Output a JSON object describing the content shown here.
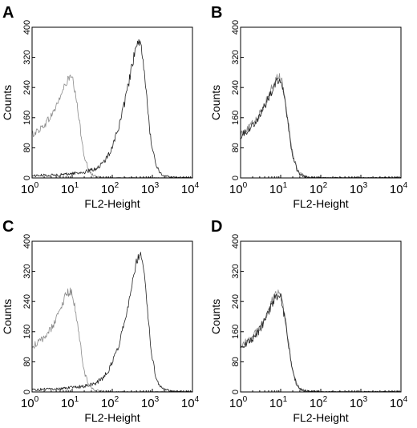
{
  "chart_data": [
    {
      "panel": "A",
      "type": "line",
      "xlabel": "FL2-Height",
      "ylabel": "Counts",
      "xscale": "log",
      "xlim": [
        1,
        10000
      ],
      "ylim": [
        0,
        400
      ],
      "xticks": [
        {
          "base": "10",
          "exp": "0"
        },
        {
          "base": "10",
          "exp": "1"
        },
        {
          "base": "10",
          "exp": "2"
        },
        {
          "base": "10",
          "exp": "3"
        },
        {
          "base": "10",
          "exp": "4"
        }
      ],
      "yticks": [
        "0",
        "80",
        "160",
        "240",
        "320",
        "400"
      ],
      "series": [
        {
          "color": "#8a8a8a",
          "x": [
            1,
            1.5,
            2,
            3,
            4,
            5,
            6,
            7,
            8,
            9,
            10,
            11,
            12,
            14,
            16,
            18,
            20,
            25,
            30,
            40,
            60,
            100,
            1000,
            10000
          ],
          "y": [
            115,
            128,
            140,
            165,
            190,
            215,
            235,
            250,
            262,
            268,
            262,
            245,
            220,
            175,
            130,
            90,
            60,
            25,
            10,
            3,
            1,
            0,
            0,
            0
          ]
        },
        {
          "color": "#222222",
          "x": [
            1,
            5,
            10,
            20,
            40,
            60,
            80,
            100,
            150,
            200,
            250,
            300,
            350,
            400,
            450,
            500,
            550,
            600,
            650,
            700,
            800,
            900,
            1000,
            1200,
            1500,
            2000,
            3000,
            5000,
            10000
          ],
          "y": [
            6,
            8,
            12,
            15,
            25,
            40,
            60,
            85,
            140,
            195,
            245,
            290,
            325,
            345,
            355,
            350,
            335,
            305,
            270,
            230,
            160,
            110,
            75,
            40,
            15,
            5,
            2,
            1,
            0
          ]
        }
      ]
    },
    {
      "panel": "B",
      "type": "line",
      "xlabel": "FL2-Height",
      "ylabel": "Counts",
      "xscale": "log",
      "xlim": [
        1,
        10000
      ],
      "ylim": [
        0,
        400
      ],
      "xticks": [
        {
          "base": "10",
          "exp": "0"
        },
        {
          "base": "10",
          "exp": "1"
        },
        {
          "base": "10",
          "exp": "2"
        },
        {
          "base": "10",
          "exp": "3"
        },
        {
          "base": "10",
          "exp": "4"
        }
      ],
      "yticks": [
        "0",
        "80",
        "160",
        "240",
        "320",
        "400"
      ],
      "series": [
        {
          "color": "#8a8a8a",
          "x": [
            1,
            1.5,
            2,
            3,
            4,
            5,
            6,
            7,
            8,
            9,
            10,
            11,
            12,
            14,
            16,
            18,
            20,
            25,
            30,
            40,
            60,
            100,
            1000,
            10000
          ],
          "y": [
            118,
            130,
            145,
            170,
            195,
            220,
            240,
            255,
            265,
            270,
            265,
            250,
            225,
            180,
            135,
            95,
            65,
            28,
            12,
            4,
            1,
            0,
            0,
            0
          ]
        },
        {
          "color": "#222222",
          "x": [
            1,
            1.5,
            2,
            3,
            4,
            5,
            6,
            7,
            8,
            9,
            10,
            11,
            12,
            14,
            16,
            18,
            20,
            25,
            30,
            40,
            60,
            100,
            1000,
            10000
          ],
          "y": [
            112,
            126,
            140,
            165,
            190,
            212,
            232,
            248,
            258,
            262,
            258,
            243,
            218,
            172,
            128,
            88,
            58,
            24,
            10,
            3,
            1,
            0,
            0,
            0
          ]
        }
      ]
    },
    {
      "panel": "C",
      "type": "line",
      "xlabel": "FL2-Height",
      "ylabel": "Counts",
      "xscale": "log",
      "xlim": [
        1,
        10000
      ],
      "ylim": [
        0,
        400
      ],
      "xticks": [
        {
          "base": "10",
          "exp": "0"
        },
        {
          "base": "10",
          "exp": "1"
        },
        {
          "base": "10",
          "exp": "2"
        },
        {
          "base": "10",
          "exp": "3"
        },
        {
          "base": "10",
          "exp": "4"
        }
      ],
      "yticks": [
        "0",
        "80",
        "160",
        "240",
        "320",
        "400"
      ],
      "series": [
        {
          "color": "#8a8a8a",
          "x": [
            1,
            1.5,
            2,
            3,
            4,
            5,
            6,
            7,
            8,
            9,
            10,
            11,
            12,
            14,
            16,
            18,
            20,
            25,
            30,
            40,
            60,
            100,
            1000,
            10000
          ],
          "y": [
            120,
            132,
            145,
            168,
            195,
            220,
            240,
            255,
            265,
            268,
            260,
            240,
            215,
            170,
            125,
            85,
            55,
            22,
            9,
            3,
            1,
            0,
            0,
            0
          ]
        },
        {
          "color": "#222222",
          "x": [
            1,
            5,
            10,
            20,
            40,
            60,
            80,
            100,
            150,
            200,
            250,
            300,
            350,
            400,
            450,
            500,
            550,
            600,
            650,
            700,
            800,
            900,
            1000,
            1200,
            1500,
            2000,
            3000,
            5000,
            10000
          ],
          "y": [
            6,
            8,
            12,
            15,
            24,
            38,
            55,
            80,
            130,
            185,
            235,
            280,
            320,
            345,
            360,
            368,
            360,
            340,
            305,
            265,
            190,
            130,
            90,
            45,
            18,
            6,
            2,
            1,
            0
          ]
        }
      ]
    },
    {
      "panel": "D",
      "type": "line",
      "xlabel": "FL2-Height",
      "ylabel": "Counts",
      "xscale": "log",
      "xlim": [
        1,
        10000
      ],
      "ylim": [
        0,
        400
      ],
      "xticks": [
        {
          "base": "10",
          "exp": "0"
        },
        {
          "base": "10",
          "exp": "1"
        },
        {
          "base": "10",
          "exp": "2"
        },
        {
          "base": "10",
          "exp": "3"
        },
        {
          "base": "10",
          "exp": "4"
        }
      ],
      "yticks": [
        "0",
        "80",
        "160",
        "240",
        "320",
        "400"
      ],
      "series": [
        {
          "color": "#8a8a8a",
          "x": [
            1,
            1.5,
            2,
            3,
            4,
            5,
            6,
            7,
            8,
            9,
            10,
            11,
            12,
            14,
            16,
            18,
            20,
            25,
            30,
            40,
            60,
            100,
            1000,
            10000
          ],
          "y": [
            125,
            135,
            148,
            170,
            195,
            220,
            240,
            255,
            262,
            265,
            258,
            240,
            215,
            170,
            125,
            85,
            55,
            22,
            9,
            3,
            1,
            0,
            0,
            0
          ]
        },
        {
          "color": "#222222",
          "x": [
            1,
            1.5,
            2,
            3,
            4,
            5,
            6,
            7,
            8,
            9,
            10,
            11,
            12,
            14,
            16,
            18,
            20,
            25,
            30,
            40,
            60,
            100,
            1000,
            10000
          ],
          "y": [
            118,
            130,
            142,
            165,
            190,
            213,
            232,
            248,
            255,
            258,
            252,
            235,
            210,
            165,
            122,
            82,
            53,
            21,
            8,
            3,
            1,
            0,
            0,
            0
          ]
        }
      ]
    }
  ]
}
